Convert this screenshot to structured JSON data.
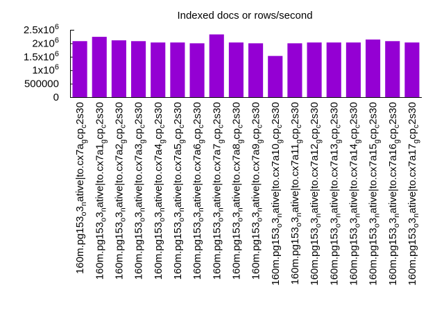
{
  "chart_data": {
    "type": "bar",
    "title": "Indexed docs or rows/second",
    "xlabel": "",
    "ylabel": "",
    "ylim": [
      0,
      2500000
    ],
    "yticks": [
      {
        "value": 0,
        "base": "0",
        "exp": ""
      },
      {
        "value": 500000,
        "base": "500000",
        "exp": ""
      },
      {
        "value": 1000000,
        "base": "1x10",
        "exp": "6"
      },
      {
        "value": 1500000,
        "base": "1.5x10",
        "exp": "6"
      },
      {
        "value": 2000000,
        "base": "2x10",
        "exp": "6"
      },
      {
        "value": 2500000,
        "base": "2.5x10",
        "exp": "6"
      }
    ],
    "bar_color": "#9400d3",
    "categories": [
      {
        "pre": "160m.pg153",
        "sub1": "o",
        "mid1": "3",
        "sub2": "n",
        "mid2": "ative",
        "sub3": "",
        "mid3": "|to.cx7a",
        "sub4": "g",
        "post": "cp",
        "sub5": "c",
        "tail": "2s30"
      },
      {
        "pre": "160m.pg153",
        "sub1": "o",
        "mid1": "3",
        "sub2": "n",
        "mid2": "ative",
        "sub3": "",
        "mid3": "|to.cx7a1",
        "sub4": "g",
        "post": "cp",
        "sub5": "c",
        "tail": "2s30"
      },
      {
        "pre": "160m.pg153",
        "sub1": "o",
        "mid1": "3",
        "sub2": "n",
        "mid2": "ative",
        "sub3": "",
        "mid3": "|to.cx7a2",
        "sub4": "g",
        "post": "cp",
        "sub5": "c",
        "tail": "2s30"
      },
      {
        "pre": "160m.pg153",
        "sub1": "o",
        "mid1": "3",
        "sub2": "n",
        "mid2": "ative",
        "sub3": "",
        "mid3": "|to.cx7a3",
        "sub4": "g",
        "post": "cp",
        "sub5": "c",
        "tail": "2s30"
      },
      {
        "pre": "160m.pg153",
        "sub1": "o",
        "mid1": "3",
        "sub2": "n",
        "mid2": "ative",
        "sub3": "",
        "mid3": "|to.cx7a4",
        "sub4": "g",
        "post": "cp",
        "sub5": "c",
        "tail": "2s30"
      },
      {
        "pre": "160m.pg153",
        "sub1": "o",
        "mid1": "3",
        "sub2": "n",
        "mid2": "ative",
        "sub3": "",
        "mid3": "|to.cx7a5",
        "sub4": "g",
        "post": "cp",
        "sub5": "c",
        "tail": "2s30"
      },
      {
        "pre": "160m.pg153",
        "sub1": "o",
        "mid1": "3",
        "sub2": "n",
        "mid2": "ative",
        "sub3": "",
        "mid3": "|to.cx7a6",
        "sub4": "g",
        "post": "cp",
        "sub5": "c",
        "tail": "2s30"
      },
      {
        "pre": "160m.pg153",
        "sub1": "o",
        "mid1": "3",
        "sub2": "n",
        "mid2": "ative",
        "sub3": "",
        "mid3": "|to.cx7a7",
        "sub4": "g",
        "post": "cp",
        "sub5": "c",
        "tail": "2s30"
      },
      {
        "pre": "160m.pg153",
        "sub1": "o",
        "mid1": "3",
        "sub2": "n",
        "mid2": "ative",
        "sub3": "",
        "mid3": "|to.cx7a8",
        "sub4": "g",
        "post": "cp",
        "sub5": "c",
        "tail": "2s30"
      },
      {
        "pre": "160m.pg153",
        "sub1": "o",
        "mid1": "3",
        "sub2": "n",
        "mid2": "ative",
        "sub3": "",
        "mid3": "|to.cx7a9",
        "sub4": "g",
        "post": "cp",
        "sub5": "c",
        "tail": "2s30"
      },
      {
        "pre": "160m.pg153",
        "sub1": "o",
        "mid1": "3",
        "sub2": "n",
        "mid2": "ative",
        "sub3": "",
        "mid3": "|to.cx7a10",
        "sub4": "g",
        "post": "cp",
        "sub5": "c",
        "tail": "2s30"
      },
      {
        "pre": "160m.pg153",
        "sub1": "o",
        "mid1": "3",
        "sub2": "n",
        "mid2": "ative",
        "sub3": "",
        "mid3": "|to.cx7a11",
        "sub4": "g",
        "post": "cp",
        "sub5": "c",
        "tail": "2s30"
      },
      {
        "pre": "160m.pg153",
        "sub1": "o",
        "mid1": "3",
        "sub2": "n",
        "mid2": "ative",
        "sub3": "",
        "mid3": "|to.cx7a12",
        "sub4": "g",
        "post": "cp",
        "sub5": "c",
        "tail": "2s30"
      },
      {
        "pre": "160m.pg153",
        "sub1": "o",
        "mid1": "3",
        "sub2": "n",
        "mid2": "ative",
        "sub3": "",
        "mid3": "|to.cx7a13",
        "sub4": "g",
        "post": "cp",
        "sub5": "c",
        "tail": "2s30"
      },
      {
        "pre": "160m.pg153",
        "sub1": "o",
        "mid1": "3",
        "sub2": "n",
        "mid2": "ative",
        "sub3": "",
        "mid3": "|to.cx7a14",
        "sub4": "g",
        "post": "cp",
        "sub5": "c",
        "tail": "2s30"
      },
      {
        "pre": "160m.pg153",
        "sub1": "o",
        "mid1": "3",
        "sub2": "n",
        "mid2": "ative",
        "sub3": "",
        "mid3": "|to.cx7a15",
        "sub4": "g",
        "post": "cp",
        "sub5": "c",
        "tail": "2s30"
      },
      {
        "pre": "160m.pg153",
        "sub1": "o",
        "mid1": "3",
        "sub2": "n",
        "mid2": "ative",
        "sub3": "",
        "mid3": "|to.cx7a16",
        "sub4": "g",
        "post": "cp",
        "sub5": "c",
        "tail": "2s30"
      },
      {
        "pre": "160m.pg153",
        "sub1": "o",
        "mid1": "3",
        "sub2": "n",
        "mid2": "ative",
        "sub3": "",
        "mid3": "|to.cx7a17",
        "sub4": "g",
        "post": "cp",
        "sub5": "c",
        "tail": "2s30"
      }
    ],
    "values": [
      2080000,
      2240000,
      2110000,
      2080000,
      2030000,
      2030000,
      2000000,
      2330000,
      2030000,
      2000000,
      1530000,
      2000000,
      2030000,
      2030000,
      2030000,
      2140000,
      2080000,
      2030000
    ]
  }
}
